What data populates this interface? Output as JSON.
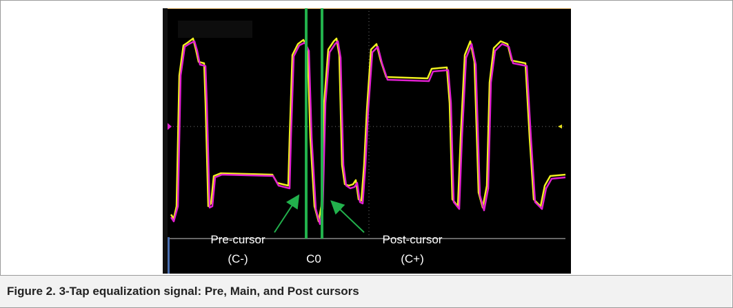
{
  "figure": {
    "annotations": {
      "pre_cursor": "Pre-cursor",
      "pre_cursor_symbol": "(C-)",
      "main_cursor": "C0",
      "post_cursor": "Post-cursor",
      "post_cursor_symbol": "(C+)"
    },
    "caption": "Figure 2.  3-Tap equalization signal: Pre, Main, and Post cursors"
  }
}
